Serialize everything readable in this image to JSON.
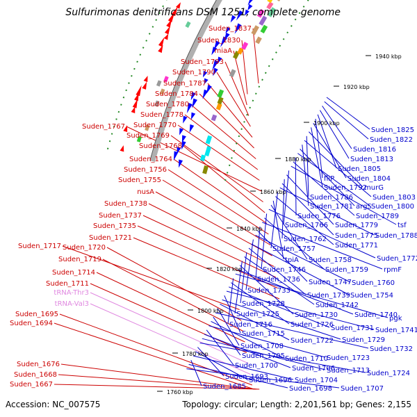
{
  "title": "Sulfurimonas denitrificans DSM 1251, complete genome",
  "footer": {
    "accession": "Accession: NC_007575",
    "topology": "Topology: circular; Length: 2,201,561 bp; Genes: 2,155"
  },
  "colors": {
    "left_labels": "#cc0000",
    "right_labels": "#0000cc",
    "trna_labels": "#e088e0",
    "ring": "#999999",
    "forward_genes": "#ff0000",
    "reverse_genes": "#0000ff"
  },
  "scale_marks": [
    "1760 kbp",
    "1780 kbp",
    "1800 kbp",
    "1820 kbp",
    "1840 kbp",
    "1860 kbp",
    "1880 kbp",
    "1900 kbp",
    "1920 kbp",
    "1940 kbp"
  ],
  "left_labels": [
    "Suden_1837",
    "Suden_1830",
    "miaA",
    "Suden_1793",
    "Suden_1790",
    "Suden_1787",
    "Suden_1784",
    "Suden_1780",
    "Suden_1778",
    "Suden_1770",
    "Suden_1767",
    "Suden_1769",
    "Suden_1768",
    "Suden_1764",
    "Suden_1756",
    "Suden_1755",
    "nusA",
    "Suden_1738",
    "Suden_1737",
    "Suden_1735",
    "Suden_1721",
    "Suden_1717",
    "Suden_1720",
    "Suden_1719",
    "Suden_1714",
    "Suden_1711",
    "tRNA-Thr3",
    "tRNA-Val3",
    "Suden_1695",
    "Suden_1694",
    "Suden_1676",
    "Suden_1668",
    "Suden_1667"
  ],
  "right_labels": [
    "Suden_1825",
    "Suden_1822",
    "Suden_1816",
    "Suden_1813",
    "Suden_1805",
    "fliP",
    "Suden_1804",
    "Suden_1792",
    "murG",
    "Suden_1786",
    "Suden_1803",
    "Suden_1781",
    "argS",
    "Suden_1800",
    "Suden_1776",
    "Suden_1789",
    "tsf",
    "Suden_1766",
    "Suden_1779",
    "Suden_1762",
    "Suden_1775",
    "Suden_1788",
    "Suden_1757",
    "Suden_1771",
    "tpiA",
    "Suden_1758",
    "Suden_1772",
    "Suden_1746",
    "Suden_1759",
    "rpmF",
    "Suden_1736",
    "Suden_1747",
    "Suden_1760",
    "Suden_1733",
    "Suden_1754",
    "Suden_1739",
    "Suden_1728",
    "Suden_1742",
    "Suden_1725",
    "Suden_1730",
    "Suden_1740",
    "pgk",
    "Suden_1716",
    "Suden_1726",
    "Suden_1731",
    "Suden_1741",
    "Suden_1715",
    "Suden_1729",
    "Suden_1722",
    "Suden_1708",
    "Suden_1732",
    "Suden_1705",
    "Suden_1710",
    "Suden_1723",
    "Suden_1700",
    "Suden_1706",
    "Suden_1713",
    "Suden_1724",
    "Suden_1693",
    "Suden_1696",
    "Suden_1704",
    "Suden_1685",
    "Suden_1698",
    "Suden_1707"
  ]
}
